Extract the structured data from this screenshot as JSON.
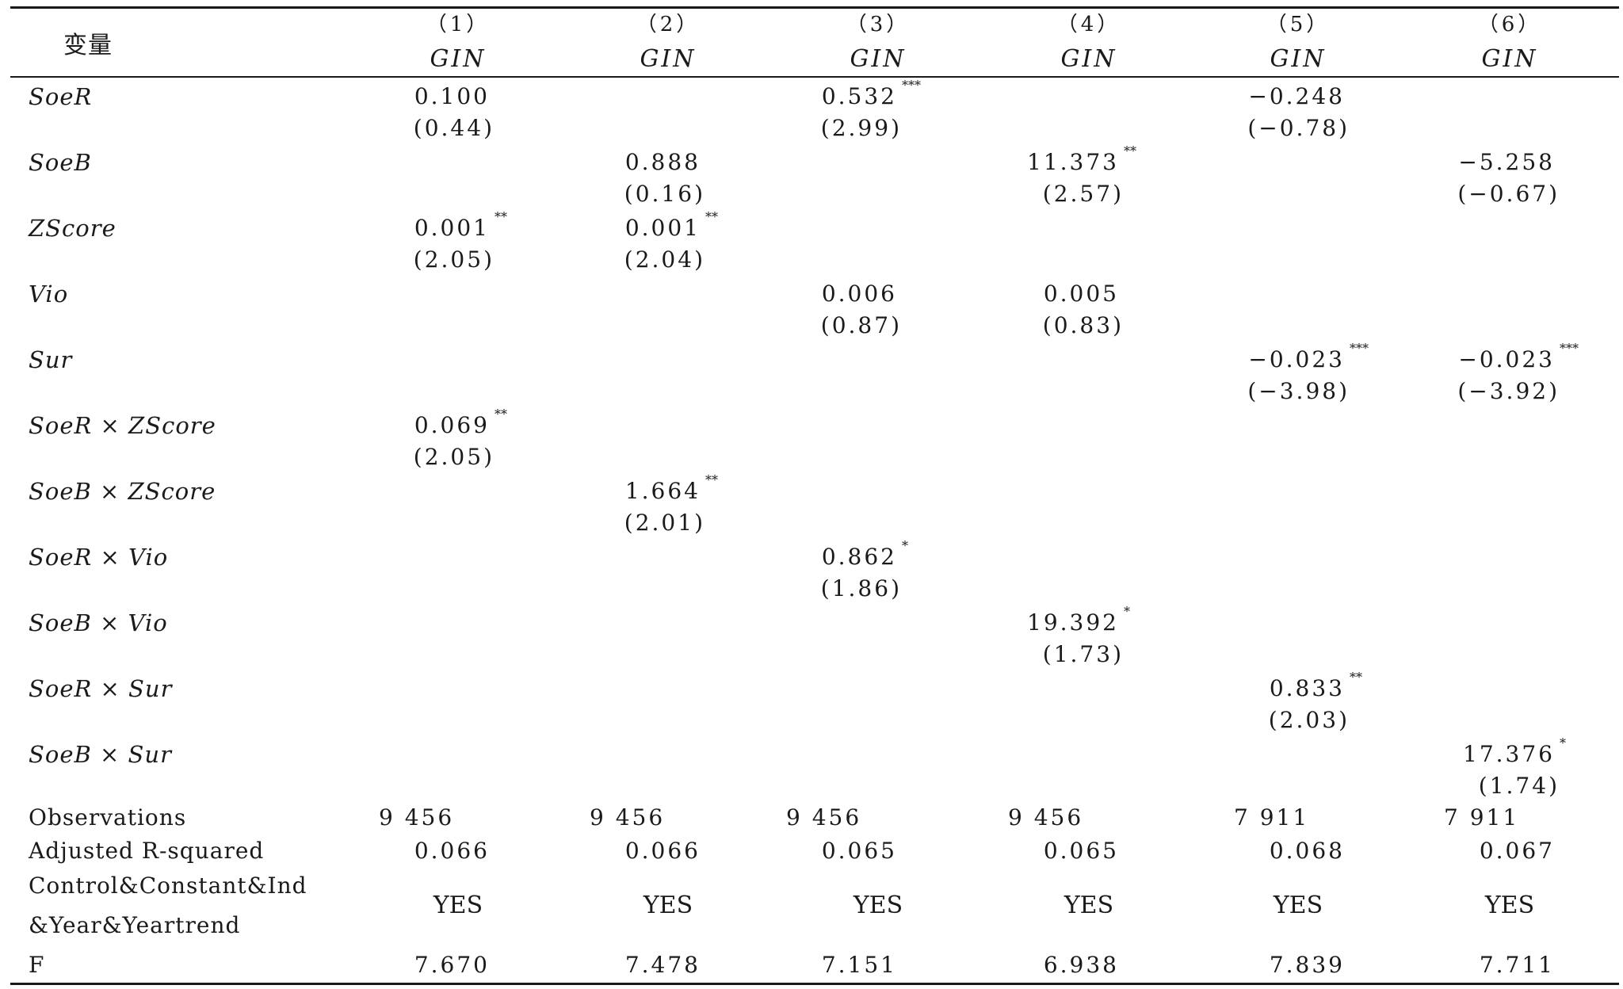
{
  "header": {
    "variable_label": "变量",
    "columns": [
      {
        "num": "（1）",
        "dep": "GIN"
      },
      {
        "num": "（2）",
        "dep": "GIN"
      },
      {
        "num": "（3）",
        "dep": "GIN"
      },
      {
        "num": "（4）",
        "dep": "GIN"
      },
      {
        "num": "（5）",
        "dep": "GIN"
      },
      {
        "num": "（6）",
        "dep": "GIN"
      }
    ]
  },
  "rows": [
    {
      "label": "SoeR",
      "cells": [
        {
          "coef": "0.100",
          "stars": "",
          "t": "(0.44)"
        },
        {
          "coef": "",
          "stars": "",
          "t": ""
        },
        {
          "coef": "0.532",
          "stars": "***",
          "t": "(2.99)"
        },
        {
          "coef": "",
          "stars": "",
          "t": ""
        },
        {
          "coef": "−0.248",
          "stars": "",
          "t": "(−0.78)"
        },
        {
          "coef": "",
          "stars": "",
          "t": ""
        }
      ]
    },
    {
      "label": "SoeB",
      "cells": [
        {
          "coef": "",
          "stars": "",
          "t": ""
        },
        {
          "coef": "0.888",
          "stars": "",
          "t": "(0.16)"
        },
        {
          "coef": "",
          "stars": "",
          "t": ""
        },
        {
          "coef": "11.373",
          "stars": "**",
          "t": "(2.57)"
        },
        {
          "coef": "",
          "stars": "",
          "t": ""
        },
        {
          "coef": "−5.258",
          "stars": "",
          "t": "(−0.67)"
        }
      ]
    },
    {
      "label": "ZScore",
      "cells": [
        {
          "coef": "0.001",
          "stars": "**",
          "t": "(2.05)"
        },
        {
          "coef": "0.001",
          "stars": "**",
          "t": "(2.04)"
        },
        {
          "coef": "",
          "stars": "",
          "t": ""
        },
        {
          "coef": "",
          "stars": "",
          "t": ""
        },
        {
          "coef": "",
          "stars": "",
          "t": ""
        },
        {
          "coef": "",
          "stars": "",
          "t": ""
        }
      ]
    },
    {
      "label": "Vio",
      "cells": [
        {
          "coef": "",
          "stars": "",
          "t": ""
        },
        {
          "coef": "",
          "stars": "",
          "t": ""
        },
        {
          "coef": "0.006",
          "stars": "",
          "t": "(0.87)"
        },
        {
          "coef": "0.005",
          "stars": "",
          "t": "(0.83)"
        },
        {
          "coef": "",
          "stars": "",
          "t": ""
        },
        {
          "coef": "",
          "stars": "",
          "t": ""
        }
      ]
    },
    {
      "label": "Sur",
      "cells": [
        {
          "coef": "",
          "stars": "",
          "t": ""
        },
        {
          "coef": "",
          "stars": "",
          "t": ""
        },
        {
          "coef": "",
          "stars": "",
          "t": ""
        },
        {
          "coef": "",
          "stars": "",
          "t": ""
        },
        {
          "coef": "−0.023",
          "stars": "***",
          "t": "(−3.98)"
        },
        {
          "coef": "−0.023",
          "stars": "***",
          "t": "(−3.92)"
        }
      ]
    },
    {
      "label": "SoeR × ZScore",
      "cells": [
        {
          "coef": "0.069",
          "stars": "**",
          "t": "(2.05)"
        },
        {
          "coef": "",
          "stars": "",
          "t": ""
        },
        {
          "coef": "",
          "stars": "",
          "t": ""
        },
        {
          "coef": "",
          "stars": "",
          "t": ""
        },
        {
          "coef": "",
          "stars": "",
          "t": ""
        },
        {
          "coef": "",
          "stars": "",
          "t": ""
        }
      ]
    },
    {
      "label": "SoeB × ZScore",
      "cells": [
        {
          "coef": "",
          "stars": "",
          "t": ""
        },
        {
          "coef": "1.664",
          "stars": "**",
          "t": "(2.01)"
        },
        {
          "coef": "",
          "stars": "",
          "t": ""
        },
        {
          "coef": "",
          "stars": "",
          "t": ""
        },
        {
          "coef": "",
          "stars": "",
          "t": ""
        },
        {
          "coef": "",
          "stars": "",
          "t": ""
        }
      ]
    },
    {
      "label": "SoeR × Vio",
      "cells": [
        {
          "coef": "",
          "stars": "",
          "t": ""
        },
        {
          "coef": "",
          "stars": "",
          "t": ""
        },
        {
          "coef": "0.862",
          "stars": "*",
          "t": "(1.86)"
        },
        {
          "coef": "",
          "stars": "",
          "t": ""
        },
        {
          "coef": "",
          "stars": "",
          "t": ""
        },
        {
          "coef": "",
          "stars": "",
          "t": ""
        }
      ]
    },
    {
      "label": "SoeB × Vio",
      "cells": [
        {
          "coef": "",
          "stars": "",
          "t": ""
        },
        {
          "coef": "",
          "stars": "",
          "t": ""
        },
        {
          "coef": "",
          "stars": "",
          "t": ""
        },
        {
          "coef": "19.392",
          "stars": "*",
          "t": "(1.73)"
        },
        {
          "coef": "",
          "stars": "",
          "t": ""
        },
        {
          "coef": "",
          "stars": "",
          "t": ""
        }
      ]
    },
    {
      "label": "SoeR × Sur",
      "cells": [
        {
          "coef": "",
          "stars": "",
          "t": ""
        },
        {
          "coef": "",
          "stars": "",
          "t": ""
        },
        {
          "coef": "",
          "stars": "",
          "t": ""
        },
        {
          "coef": "",
          "stars": "",
          "t": ""
        },
        {
          "coef": "0.833",
          "stars": "**",
          "t": "(2.03)"
        },
        {
          "coef": "",
          "stars": "",
          "t": ""
        }
      ]
    },
    {
      "label": "SoeB × Sur",
      "cells": [
        {
          "coef": "",
          "stars": "",
          "t": ""
        },
        {
          "coef": "",
          "stars": "",
          "t": ""
        },
        {
          "coef": "",
          "stars": "",
          "t": ""
        },
        {
          "coef": "",
          "stars": "",
          "t": ""
        },
        {
          "coef": "",
          "stars": "",
          "t": ""
        },
        {
          "coef": "17.376",
          "stars": "*",
          "t": "(1.74)"
        }
      ]
    }
  ],
  "observations": {
    "label": "Observations",
    "values": [
      "9 456",
      "9 456",
      "9 456",
      "9 456",
      "7 911",
      "7 911"
    ]
  },
  "adj_r2": {
    "label": "Adjusted R-squared",
    "values": [
      "0.066",
      "0.066",
      "0.065",
      "0.065",
      "0.068",
      "0.067"
    ]
  },
  "controls": {
    "label_line1": "Control&Constant&Ind",
    "label_line2": "&Year&Yeartrend",
    "values": [
      "YES",
      "YES",
      "YES",
      "YES",
      "YES",
      "YES"
    ]
  },
  "f_stat": {
    "label": "F",
    "values": [
      "7.670",
      "7.478",
      "7.151",
      "6.938",
      "7.839",
      "7.711"
    ]
  }
}
